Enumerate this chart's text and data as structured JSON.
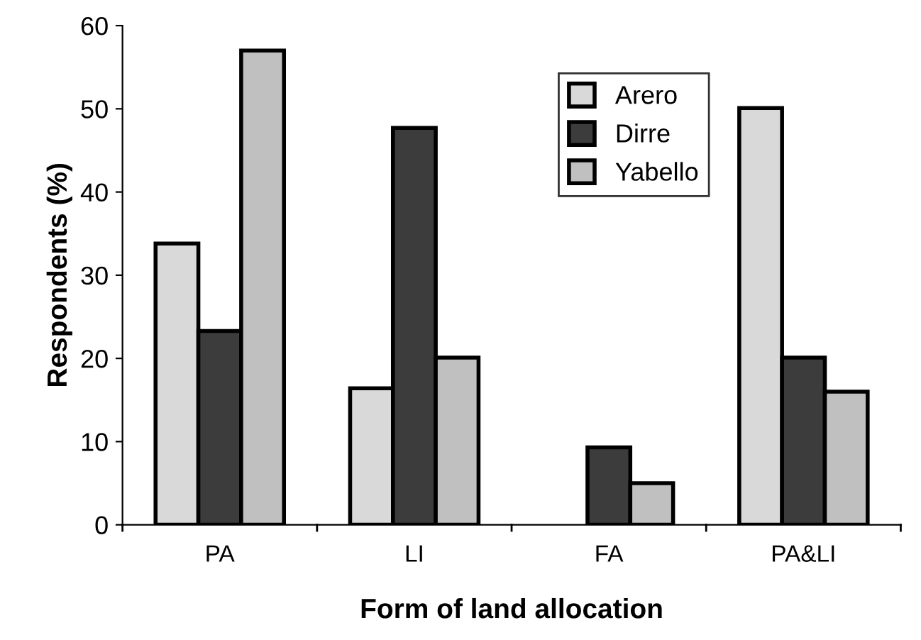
{
  "chart_data": {
    "type": "bar",
    "xlabel": "Form of land allocation",
    "ylabel": "Respondents (%)",
    "categories": [
      "PA",
      "LI",
      "FA",
      "PA&LI"
    ],
    "series": [
      {
        "name": "Arero",
        "color": "#d9d9d9",
        "values": [
          33.8,
          16.4,
          null,
          50.1
        ]
      },
      {
        "name": "Dirre",
        "color": "#3c3c3c",
        "values": [
          23.3,
          47.7,
          9.3,
          20.1
        ]
      },
      {
        "name": "Yabello",
        "color": "#c0c0c0",
        "values": [
          57,
          20.1,
          5.0,
          16.0
        ]
      }
    ],
    "ylim": [
      0,
      60
    ],
    "yticks": [
      0,
      10,
      20,
      30,
      40,
      50,
      60
    ],
    "grid": false,
    "legend": "top right"
  }
}
